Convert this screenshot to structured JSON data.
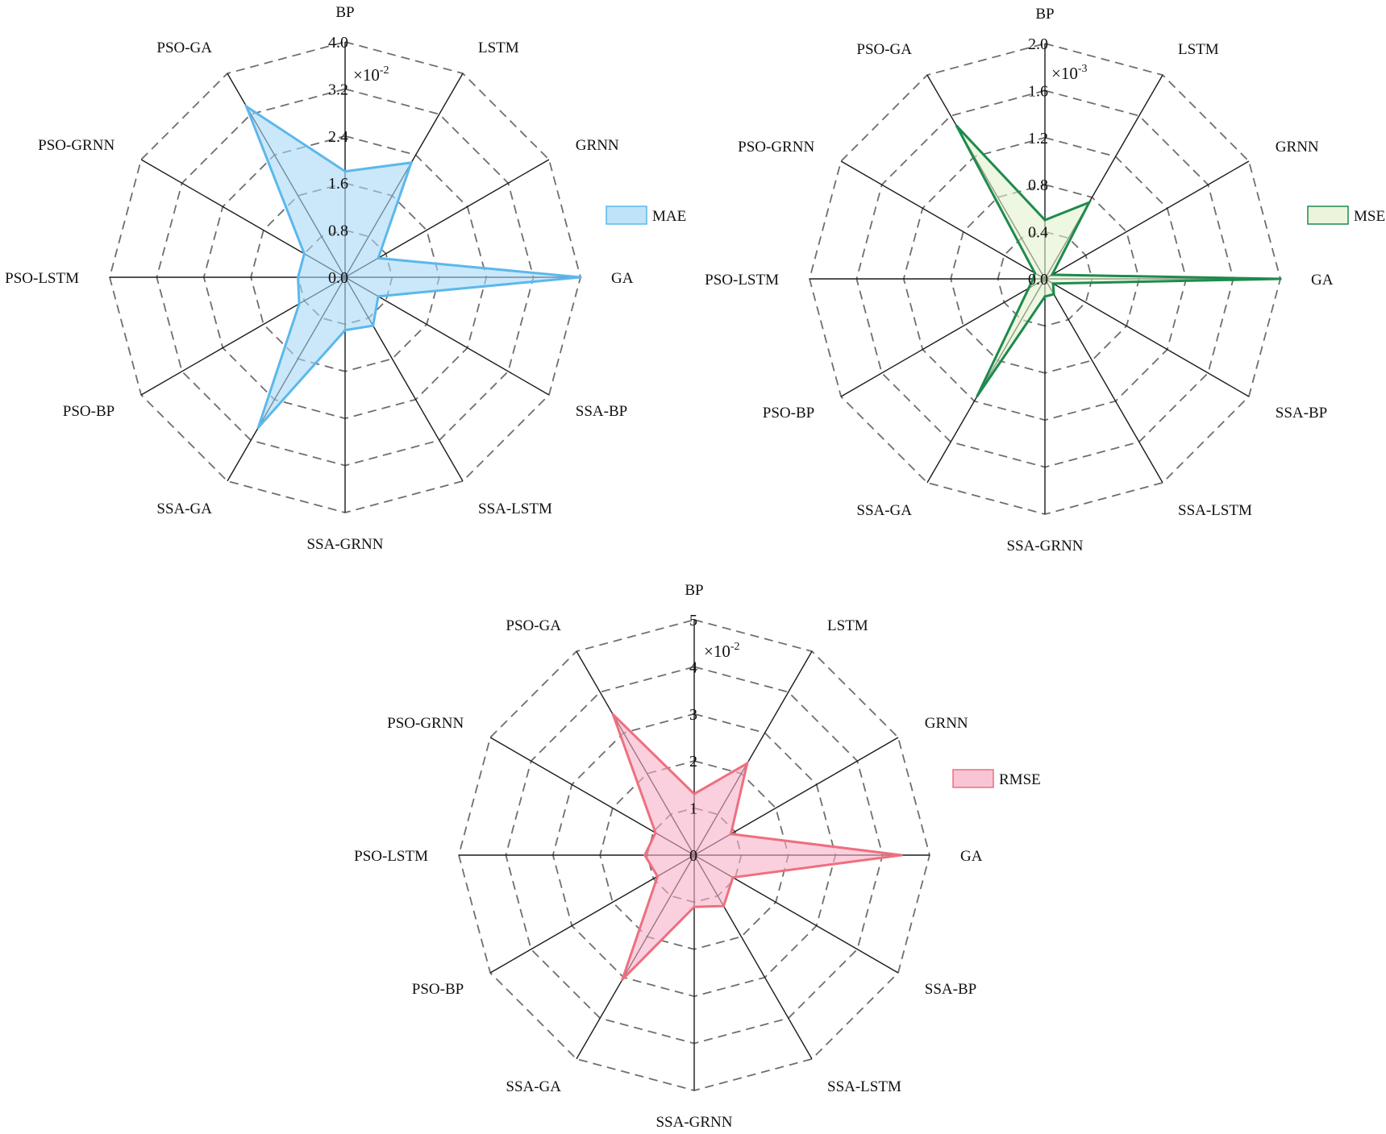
{
  "chart_data": [
    {
      "type": "radar",
      "metric": "MAE",
      "legend": "MAE",
      "scale_label": "×10",
      "scale_exponent": "-2",
      "categories": [
        "BP",
        "LSTM",
        "GRNN",
        "GA",
        "SSA-BP",
        "SSA-LSTM",
        "SSA-GRNN",
        "SSA-GA",
        "PSO-BP",
        "PSO-LSTM",
        "PSO-GRNN",
        "PSO-GA"
      ],
      "values": [
        1.8,
        2.25,
        0.65,
        4.0,
        0.65,
        0.95,
        0.9,
        2.95,
        0.9,
        0.8,
        0.8,
        3.35
      ],
      "ticks": [
        "0.0",
        "0.8",
        "1.6",
        "2.4",
        "3.2",
        "4.0"
      ],
      "rmax": 4.0,
      "stroke_color": "#5bb8ec",
      "fill_color": "#a9d9f6"
    },
    {
      "type": "radar",
      "metric": "MSE",
      "legend": "MSE",
      "scale_label": "×10",
      "scale_exponent": "-3",
      "categories": [
        "BP",
        "LSTM",
        "GRNN",
        "GA",
        "SSA-BP",
        "SSA-LSTM",
        "SSA-GRNN",
        "SSA-GA",
        "PSO-BP",
        "PSO-LSTM",
        "PSO-GRNN",
        "PSO-GA"
      ],
      "values": [
        0.5,
        0.75,
        0.07,
        2.0,
        0.08,
        0.15,
        0.15,
        1.15,
        0.16,
        0.1,
        0.1,
        1.5
      ],
      "ticks": [
        "0.0",
        "0.4",
        "0.8",
        "1.2",
        "1.6",
        "2.0"
      ],
      "rmax": 2.0,
      "stroke_color": "#1e8a4c",
      "fill_color": "#e3f2cf"
    },
    {
      "type": "radar",
      "metric": "RMSE",
      "legend": "RMSE",
      "scale_label": "×10",
      "scale_exponent": "-2",
      "categories": [
        "BP",
        "LSTM",
        "GRNN",
        "GA",
        "SSA-BP",
        "SSA-LSTM",
        "SSA-GRNN",
        "SSA-GA",
        "PSO-BP",
        "PSO-LSTM",
        "PSO-GRNN",
        "PSO-GA"
      ],
      "values": [
        1.3,
        2.25,
        0.9,
        4.4,
        0.95,
        1.25,
        1.1,
        3.05,
        0.9,
        1.05,
        0.95,
        3.45
      ],
      "ticks": [
        "0",
        "1",
        "2",
        "3",
        "4",
        "5"
      ],
      "rmax": 5.0,
      "stroke_color": "#ee6f7f",
      "fill_color": "#f7b0c8"
    }
  ]
}
